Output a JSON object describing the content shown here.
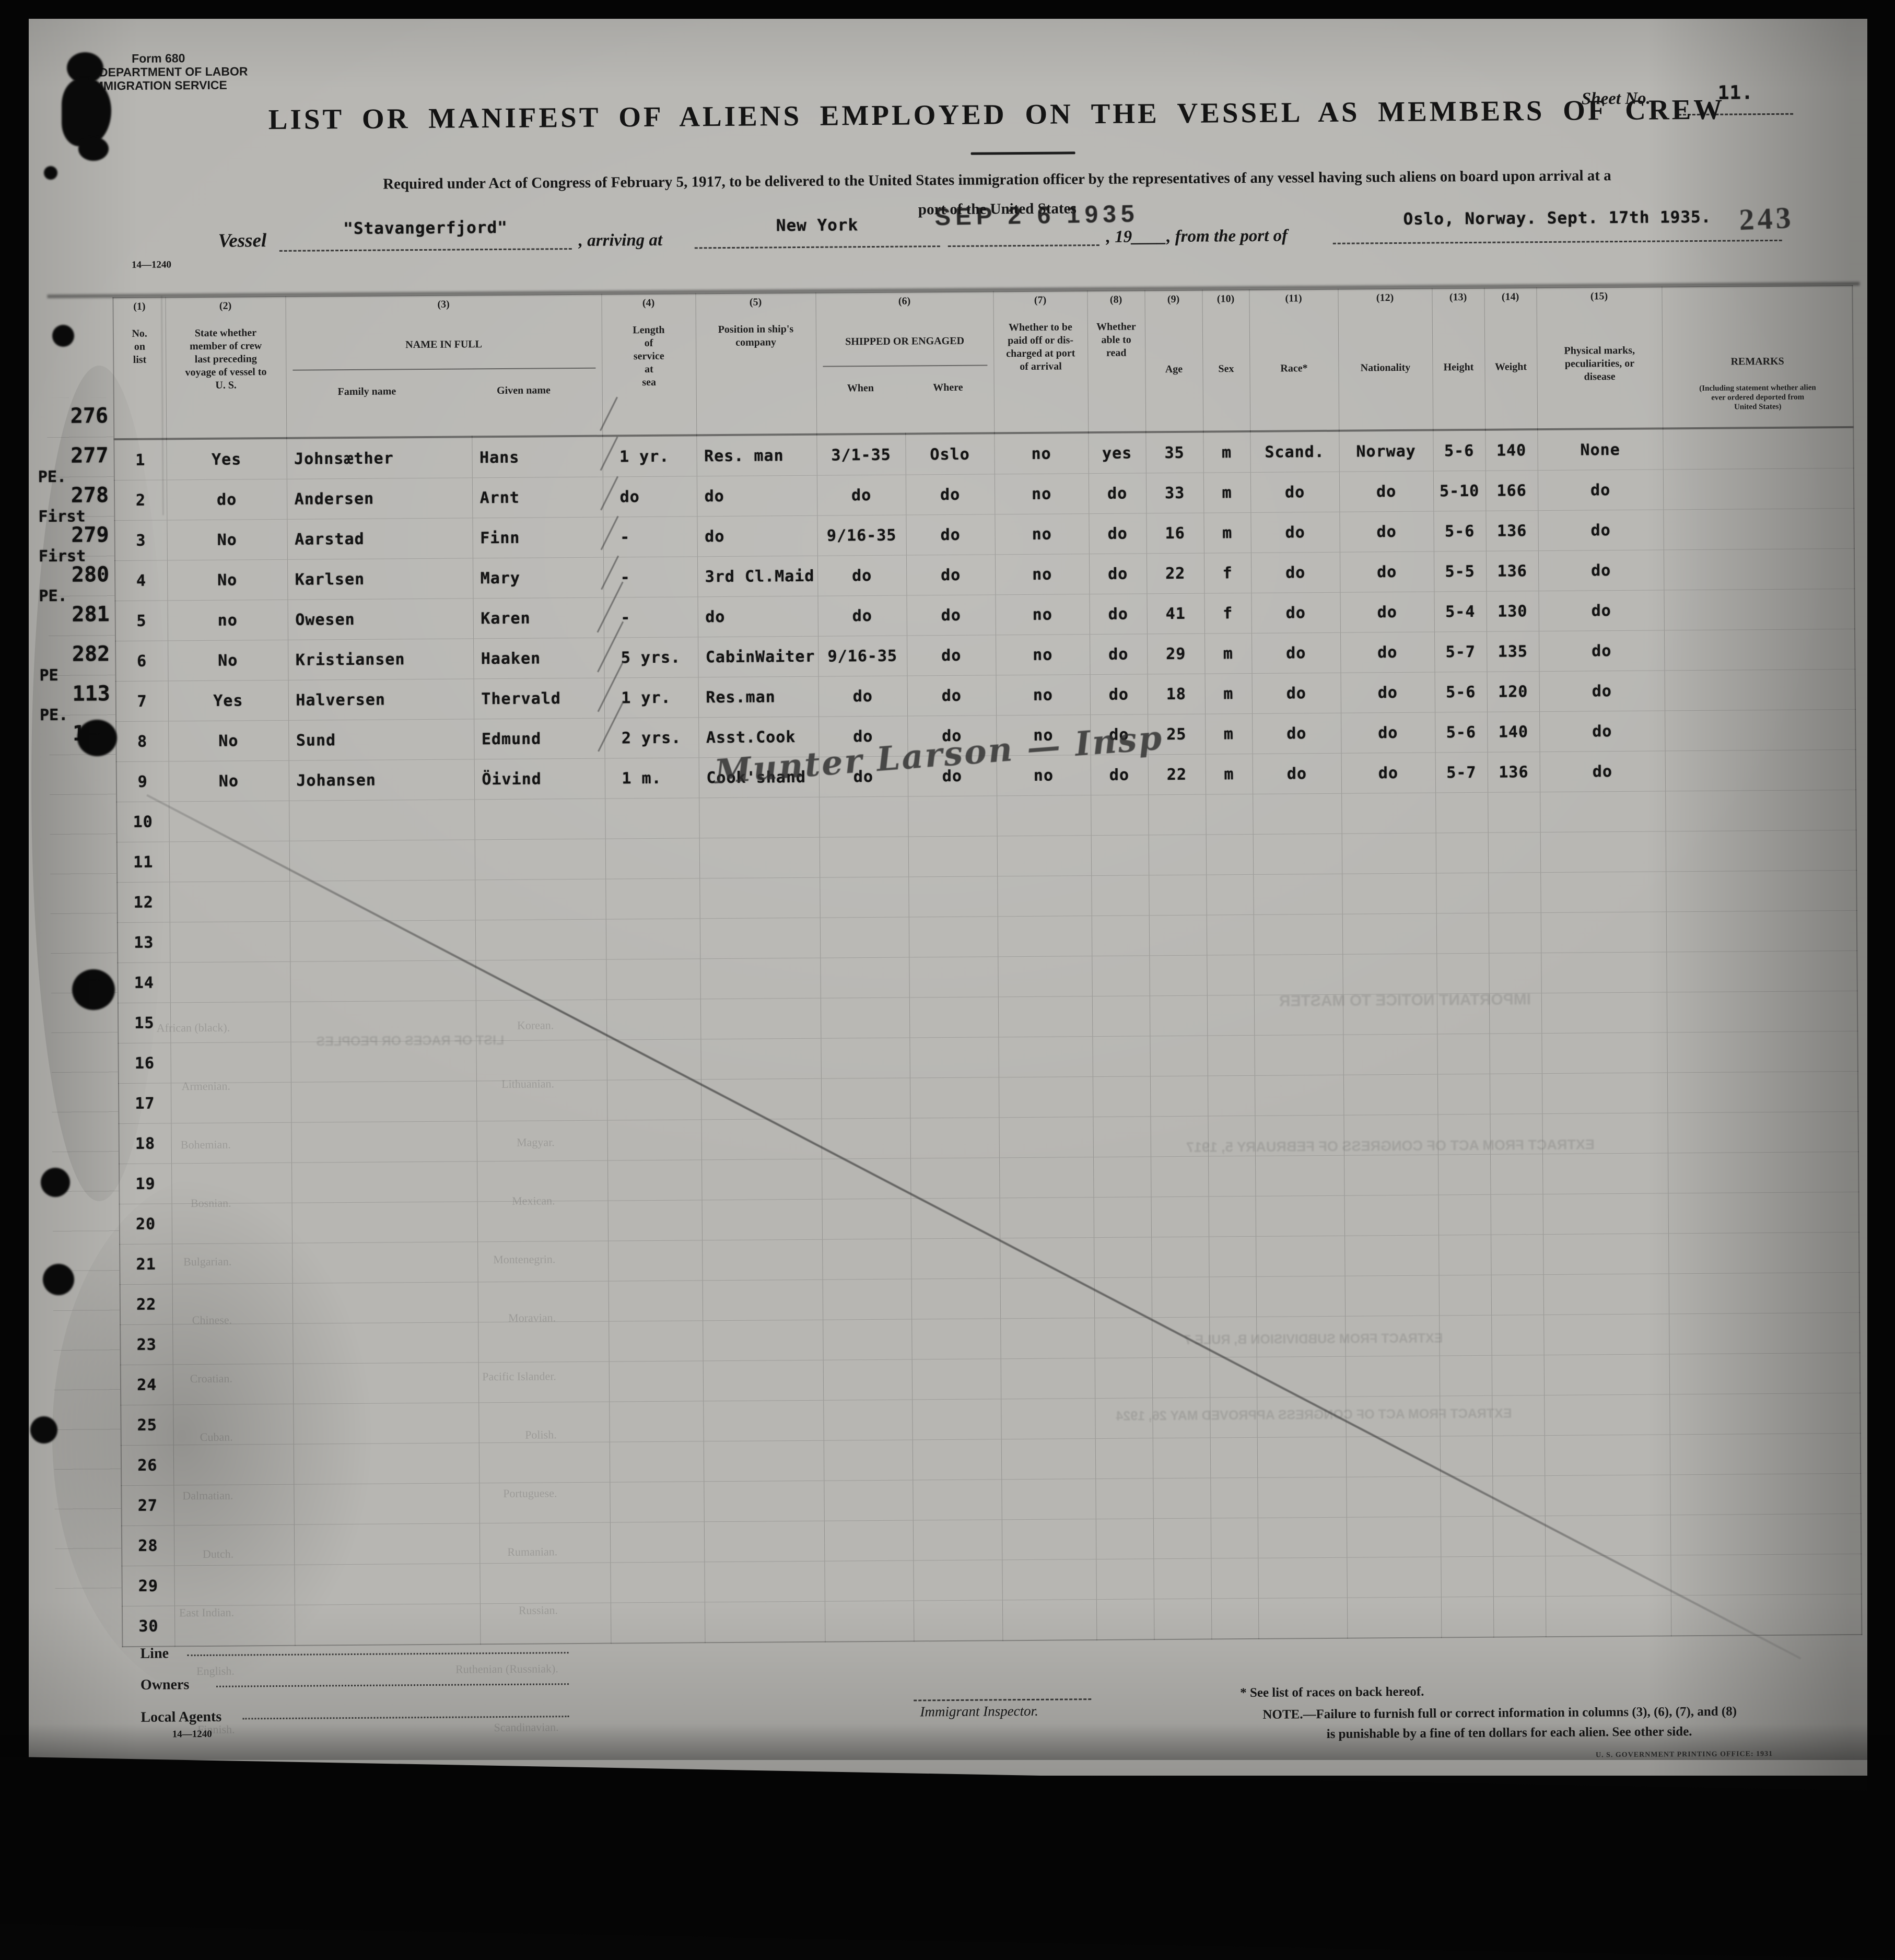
{
  "colors": {
    "paper": "#b7b6b2",
    "ink": "#141414",
    "scan_border": "#060606"
  },
  "form": {
    "form_no": "Form 680",
    "department": "U. S. DEPARTMENT OF LABOR",
    "service": "IMMIGRATION SERVICE",
    "sheet_label": "Sheet No.",
    "sheet_no": "11.",
    "title": "LIST OR MANIFEST OF ALIENS EMPLOYED ON THE VESSEL AS MEMBERS OF CREW",
    "subtitle_line1": "Required under Act of Congress of February 5, 1917, to be delivered to the United States immigration officer by the representatives of any vessel having such aliens on board upon arrival at a",
    "subtitle_line2": "port of the United States",
    "date_stamp": "SEP 2 6 1935",
    "page_stamp": "243",
    "vessel_label": "Vessel",
    "vessel_name": "\"Stavangerfjord\"",
    "arriving_label": ", arriving at",
    "arrival_port": "New York",
    "year_label": ", 19____, from the port of",
    "origin_port": "Oslo, Norway. Sept. 17th 1935.",
    "form_code": "14—1240"
  },
  "table": {
    "fields": [
      "no",
      "state",
      "family",
      "given",
      "service",
      "position",
      "when",
      "where",
      "paid",
      "read",
      "age",
      "sex",
      "race",
      "nationality",
      "height",
      "weight",
      "marks",
      "remarks"
    ],
    "col_numbers": [
      "(1)",
      "(2)",
      "(3)",
      "(4)",
      "(5)",
      "(6)",
      "(7)",
      "(8)",
      "(9)",
      "(10)",
      "(11)",
      "(12)",
      "(13)",
      "(14)",
      "(15)"
    ],
    "headers": {
      "no": "No.\non\nlist",
      "state": "State whether\nmember of crew\nlast preceding\nvoyage of vessel to\nU. S.",
      "name": "NAME IN FULL",
      "family": "Family name",
      "given": "Given name",
      "length": "Length\nof\nservice\nat\nsea",
      "position": "Position in ship's\ncompany",
      "shipped": "SHIPPED OR ENGAGED",
      "when": "When",
      "where": "Where",
      "paid": "Whether to be\npaid off or dis-\ncharged at port\nof arrival",
      "read": "Whether\nable to\nread",
      "age": "Age",
      "sex": "Sex",
      "race": "Race*",
      "nationality": "Nationality",
      "height": "Height",
      "weight": "Weight",
      "marks": "Physical marks,\npeculiarities, or\ndisease",
      "remarks": "REMARKS",
      "remarks_sub": "(Including statement whether alien\never ordered deported from\nUnited States)"
    },
    "rows": [
      {
        "cells": [
          "1",
          "Yes",
          "Johnsæther",
          "Hans",
          "1 yr.",
          "Res. man",
          "3/1-35",
          "Oslo",
          "no",
          "yes",
          "35",
          "m",
          "Scand.",
          "Norway",
          "5-6",
          "140",
          "None",
          ""
        ]
      },
      {
        "cells": [
          "2",
          "do",
          "Andersen",
          "Arnt",
          "do",
          "do",
          "do",
          "do",
          "no",
          "do",
          "33",
          "m",
          "do",
          "do",
          "5-10",
          "166",
          "do",
          ""
        ]
      },
      {
        "cells": [
          "3",
          "No",
          "Aarstad",
          "Finn",
          "-",
          "do",
          "9/16-35",
          "do",
          "no",
          "do",
          "16",
          "m",
          "do",
          "do",
          "5-6",
          "136",
          "do",
          ""
        ]
      },
      {
        "cells": [
          "4",
          "No",
          "Karlsen",
          "Mary",
          "-",
          "3rd Cl.Maid",
          "do",
          "do",
          "no",
          "do",
          "22",
          "f",
          "do",
          "do",
          "5-5",
          "136",
          "do",
          ""
        ]
      },
      {
        "cells": [
          "5",
          "no",
          "Owesen",
          "Karen",
          "-",
          "do",
          "do",
          "do",
          "no",
          "do",
          "41",
          "f",
          "do",
          "do",
          "5-4",
          "130",
          "do",
          ""
        ]
      },
      {
        "cells": [
          "6",
          "No",
          "Kristiansen",
          "Haaken",
          "5 yrs.",
          "CabinWaiter",
          "9/16-35",
          "do",
          "no",
          "do",
          "29",
          "m",
          "do",
          "do",
          "5-7",
          "135",
          "do",
          ""
        ]
      },
      {
        "cells": [
          "7",
          "Yes",
          "Halversen",
          "Thervald",
          "1 yr.",
          "Res.man",
          "do",
          "do",
          "no",
          "do",
          "18",
          "m",
          "do",
          "do",
          "5-6",
          "120",
          "do",
          ""
        ]
      },
      {
        "cells": [
          "8",
          "No",
          "Sund",
          "Edmund",
          "2 yrs.",
          "Asst.Cook",
          "do",
          "do",
          "no",
          "do",
          "25",
          "m",
          "do",
          "do",
          "5-6",
          "140",
          "do",
          ""
        ]
      },
      {
        "cells": [
          "9",
          "No",
          "Johansen",
          "Öivind",
          "1 m.",
          "Cook'shand",
          "do",
          "do",
          "no",
          "do",
          "22",
          "m",
          "do",
          "do",
          "5-7",
          "136",
          "do",
          ""
        ]
      },
      {
        "cells": [
          "10",
          "",
          "",
          "",
          "",
          "",
          "",
          "",
          "",
          "",
          "",
          "",
          "",
          "",
          "",
          "",
          "",
          ""
        ]
      },
      {
        "cells": [
          "11",
          "",
          "",
          "",
          "",
          "",
          "",
          "",
          "",
          "",
          "",
          "",
          "",
          "",
          "",
          "",
          "",
          ""
        ]
      },
      {
        "cells": [
          "12",
          "",
          "",
          "",
          "",
          "",
          "",
          "",
          "",
          "",
          "",
          "",
          "",
          "",
          "",
          "",
          "",
          ""
        ]
      },
      {
        "cells": [
          "13",
          "",
          "",
          "",
          "",
          "",
          "",
          "",
          "",
          "",
          "",
          "",
          "",
          "",
          "",
          "",
          "",
          ""
        ]
      },
      {
        "cells": [
          "14",
          "",
          "",
          "",
          "",
          "",
          "",
          "",
          "",
          "",
          "",
          "",
          "",
          "",
          "",
          "",
          "",
          ""
        ]
      },
      {
        "cells": [
          "15",
          "",
          "",
          "",
          "",
          "",
          "",
          "",
          "",
          "",
          "",
          "",
          "",
          "",
          "",
          "",
          "",
          ""
        ]
      },
      {
        "cells": [
          "16",
          "",
          "",
          "",
          "",
          "",
          "",
          "",
          "",
          "",
          "",
          "",
          "",
          "",
          "",
          "",
          "",
          ""
        ]
      },
      {
        "cells": [
          "17",
          "",
          "",
          "",
          "",
          "",
          "",
          "",
          "",
          "",
          "",
          "",
          "",
          "",
          "",
          "",
          "",
          ""
        ]
      },
      {
        "cells": [
          "18",
          "",
          "",
          "",
          "",
          "",
          "",
          "",
          "",
          "",
          "",
          "",
          "",
          "",
          "",
          "",
          "",
          ""
        ]
      },
      {
        "cells": [
          "19",
          "",
          "",
          "",
          "",
          "",
          "",
          "",
          "",
          "",
          "",
          "",
          "",
          "",
          "",
          "",
          "",
          ""
        ]
      },
      {
        "cells": [
          "20",
          "",
          "",
          "",
          "",
          "",
          "",
          "",
          "",
          "",
          "",
          "",
          "",
          "",
          "",
          "",
          "",
          ""
        ]
      },
      {
        "cells": [
          "21",
          "",
          "",
          "",
          "",
          "",
          "",
          "",
          "",
          "",
          "",
          "",
          "",
          "",
          "",
          "",
          "",
          ""
        ]
      },
      {
        "cells": [
          "22",
          "",
          "",
          "",
          "",
          "",
          "",
          "",
          "",
          "",
          "",
          "",
          "",
          "",
          "",
          "",
          "",
          ""
        ]
      },
      {
        "cells": [
          "23",
          "",
          "",
          "",
          "",
          "",
          "",
          "",
          "",
          "",
          "",
          "",
          "",
          "",
          "",
          "",
          "",
          ""
        ]
      },
      {
        "cells": [
          "24",
          "",
          "",
          "",
          "",
          "",
          "",
          "",
          "",
          "",
          "",
          "",
          "",
          "",
          "",
          "",
          "",
          ""
        ]
      },
      {
        "cells": [
          "25",
          "",
          "",
          "",
          "",
          "",
          "",
          "",
          "",
          "",
          "",
          "",
          "",
          "",
          "",
          "",
          "",
          ""
        ]
      },
      {
        "cells": [
          "26",
          "",
          "",
          "",
          "",
          "",
          "",
          "",
          "",
          "",
          "",
          "",
          "",
          "",
          "",
          "",
          "",
          ""
        ]
      },
      {
        "cells": [
          "27",
          "",
          "",
          "",
          "",
          "",
          "",
          "",
          "",
          "",
          "",
          "",
          "",
          "",
          "",
          "",
          "",
          ""
        ]
      },
      {
        "cells": [
          "28",
          "",
          "",
          "",
          "",
          "",
          "",
          "",
          "",
          "",
          "",
          "",
          "",
          "",
          "",
          "",
          "",
          ""
        ]
      },
      {
        "cells": [
          "29",
          "",
          "",
          "",
          "",
          "",
          "",
          "",
          "",
          "",
          "",
          "",
          "",
          "",
          "",
          "",
          "",
          ""
        ]
      },
      {
        "cells": [
          "30",
          "",
          "",
          "",
          "",
          "",
          "",
          "",
          "",
          "",
          "",
          "",
          "",
          "",
          "",
          "",
          "",
          ""
        ]
      }
    ]
  },
  "margin": [
    {
      "row": 1,
      "no": "276",
      "note": ""
    },
    {
      "row": 2,
      "no": "277",
      "note": "PE."
    },
    {
      "row": 3,
      "no": "278",
      "note": "First"
    },
    {
      "row": 4,
      "no": "279",
      "note": "First"
    },
    {
      "row": 5,
      "no": "280",
      "note": "PE."
    },
    {
      "row": 6,
      "no": "281",
      "note": ""
    },
    {
      "row": 7,
      "no": "282",
      "note": "PE"
    },
    {
      "row": 8,
      "no": "113",
      "note": "PE."
    },
    {
      "row": 9,
      "no": "115",
      "note": ""
    }
  ],
  "inspector_signature": "Munter Larson — Insp",
  "footer": {
    "line_label": "Line",
    "owners_label": "Owners",
    "agents_label": "Local Agents",
    "form_code": "14—1240",
    "inspector_label": "Immigrant Inspector.",
    "races_note": "* See list of races on back hereof.",
    "note_line1": "NOTE.—Failure to furnish full or correct information in columns (3), (6), (7), and (8)",
    "note_line2": "is punishable by a fine of ten dollars for each alien.   See other side.",
    "printing_office": "U. S. GOVERNMENT PRINTING OFFICE: 1931"
  },
  "bleed": {
    "notice_title": "IMPORTANT NOTICE TO MASTER",
    "extract1": "EXTRACT FROM ACT OF CONGRESS OF FEBRUARY 5, 1917",
    "extract2": "EXTRACT FROM SUBDIVISION B, RULE 7",
    "extract3": "EXTRACT FROM ACT OF CONGRESS APPROVED MAY 26, 1924",
    "races_title": "LIST OF RACES OR PEOPLES",
    "races_left": [
      "African (black).",
      "Armenian.",
      "Bohemian.",
      "Bosnian.",
      "Bulgarian.",
      "Chinese.",
      "Croatian.",
      "Cuban.",
      "Dalmatian.",
      "Dutch.",
      "East Indian.",
      "English.",
      "Finnish."
    ],
    "races_right": [
      "Korean.",
      "Lithuanian.",
      "Magyar.",
      "Mexican.",
      "Montenegrin.",
      "Moravian.",
      "Pacific Islander.",
      "Polish.",
      "Portuguese.",
      "Rumanian.",
      "Russian.",
      "Ruthenian (Russniak).",
      "Scandinavian."
    ]
  }
}
